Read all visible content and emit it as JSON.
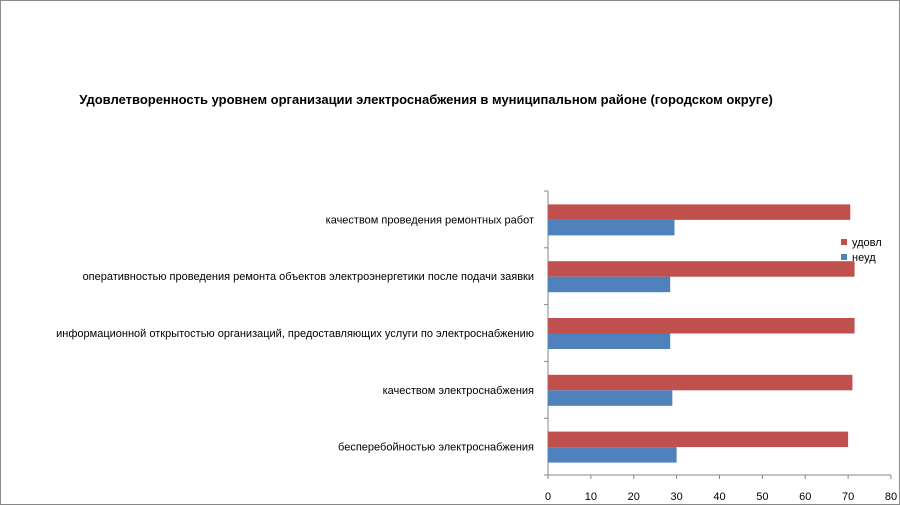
{
  "chart_data": {
    "type": "bar",
    "orientation": "horizontal",
    "title": "Удовлетворенность уровнем организации электроснабжения в муниципальном районе (городском округе)",
    "categories": [
      "бесперебойностью электроснабжения",
      "качеством электроснабжения",
      "информационной открытостью организаций, предоставляющих услуги по электроснабжению",
      "оперативностью проведения ремонта объектов электроэнергетики после подачи заявки",
      "качеством проведения ремонтных работ"
    ],
    "series": [
      {
        "name": "удовл",
        "color": "#c0504d",
        "values": [
          70,
          71,
          71.5,
          71.5,
          70.5
        ]
      },
      {
        "name": "неуд",
        "color": "#4f81bd",
        "values": [
          30,
          29,
          28.5,
          28.5,
          29.5
        ]
      }
    ],
    "xlim": [
      0,
      80
    ],
    "xticks": [
      0,
      10,
      20,
      30,
      40,
      50,
      60,
      70,
      80
    ],
    "grid": false,
    "legend_position": "right"
  }
}
